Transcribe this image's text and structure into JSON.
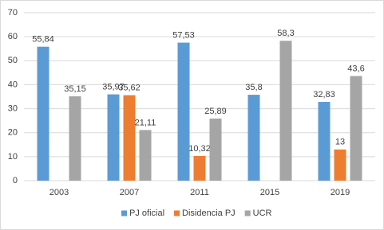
{
  "chart_data": {
    "type": "bar",
    "categories": [
      "2003",
      "2007",
      "2011",
      "2015",
      "2019"
    ],
    "series": [
      {
        "name": "PJ oficial",
        "color": "#5b9bd5",
        "values": [
          55.84,
          35.97,
          57.53,
          35.8,
          32.83
        ],
        "value_labels": [
          "55,84",
          "35,97",
          "57,53",
          "35,8",
          "32,83"
        ]
      },
      {
        "name": "Disidencia PJ",
        "color": "#ed7d31",
        "values": [
          null,
          35.62,
          10.32,
          null,
          13
        ],
        "value_labels": [
          null,
          "35,62",
          "10,32",
          null,
          "13"
        ]
      },
      {
        "name": "UCR",
        "color": "#a5a5a5",
        "values": [
          35.15,
          21.11,
          25.89,
          58.3,
          43.6
        ],
        "value_labels": [
          "35,15",
          "21,11",
          "25,89",
          "58,3",
          "43,6"
        ]
      }
    ],
    "ylim": [
      0,
      70
    ],
    "yticks": [
      0,
      10,
      20,
      30,
      40,
      50,
      60,
      70
    ],
    "grid": true,
    "legend": "bottom"
  }
}
